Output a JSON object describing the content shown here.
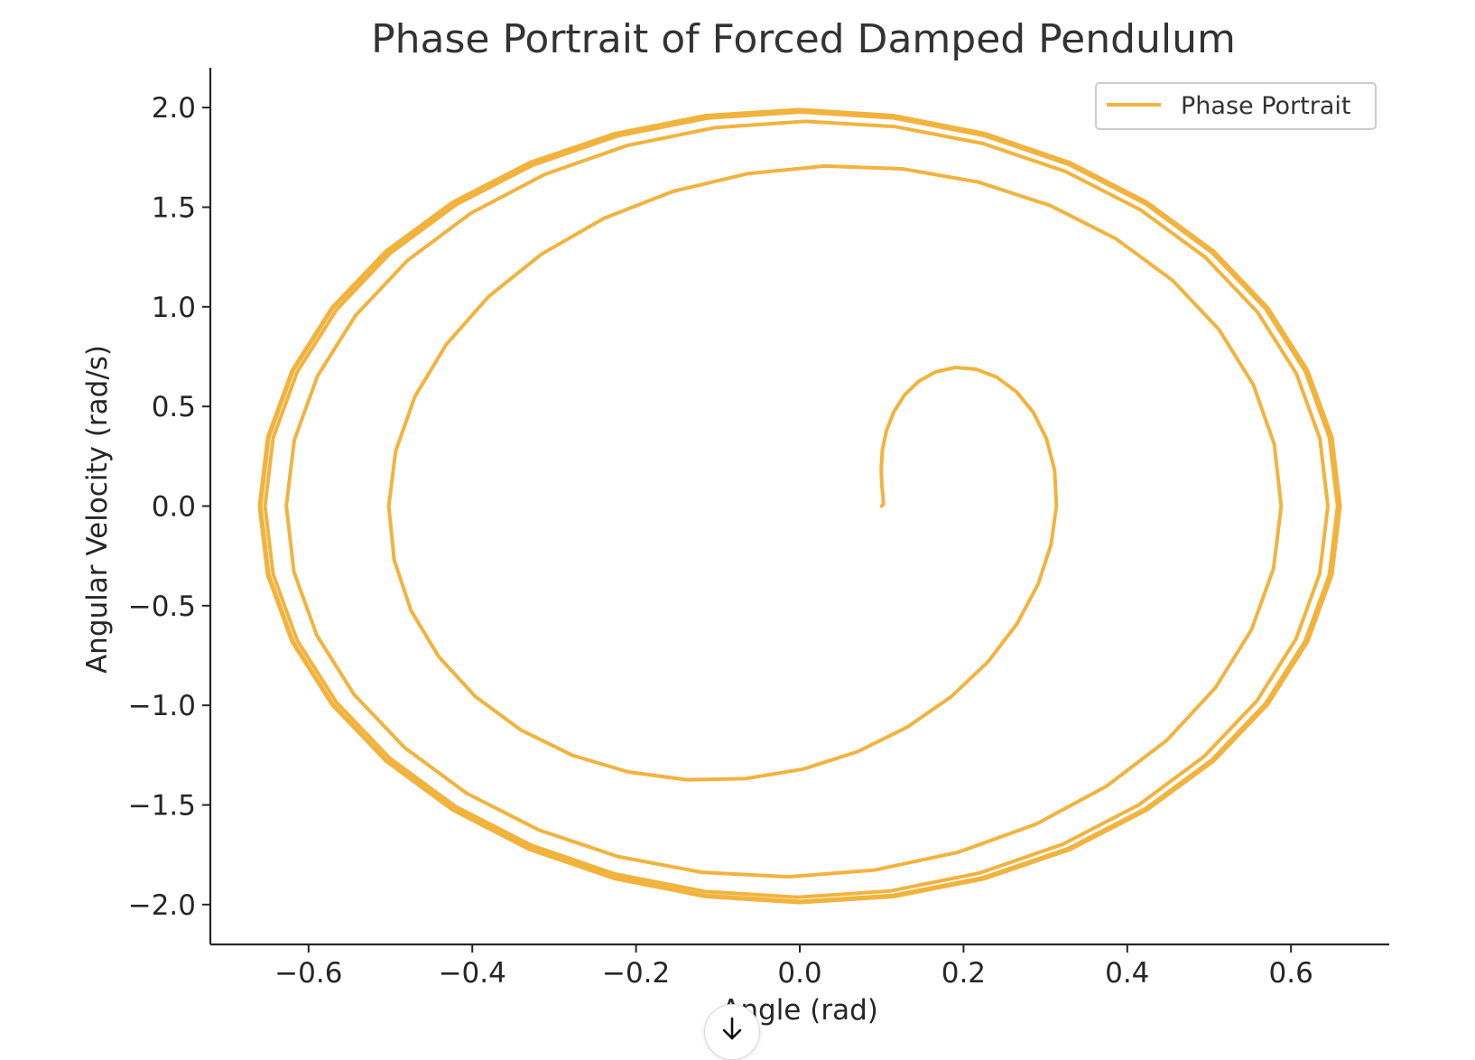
{
  "chart_data": {
    "type": "line",
    "title": "Phase Portrait of Forced Damped Pendulum",
    "xlabel": "Angle (rad)",
    "ylabel": "Angular Velocity (rad/s)",
    "xlim": [
      -0.72,
      0.72
    ],
    "ylim": [
      -2.2,
      2.2
    ],
    "xticks": [
      -0.6,
      -0.4,
      -0.2,
      0.0,
      0.2,
      0.4,
      0.6
    ],
    "yticks": [
      -2.0,
      -1.5,
      -1.0,
      -0.5,
      0.0,
      0.5,
      1.0,
      1.5,
      2.0
    ],
    "xtick_labels": [
      "−0.6",
      "−0.4",
      "−0.2",
      "0.0",
      "0.2",
      "0.4",
      "0.6"
    ],
    "ytick_labels": [
      "−2.0",
      "−1.5",
      "−1.0",
      "−0.5",
      "0.0",
      "0.5",
      "1.0",
      "1.5",
      "2.0"
    ],
    "grid": false,
    "legend": {
      "position": "top-right",
      "entries": [
        "Phase Portrait"
      ]
    },
    "series": [
      {
        "name": "Phase Portrait",
        "color": "#f2b33d",
        "model": {
          "x0": 0.1,
          "v0": 0.0,
          "steady_x_amplitude": 0.66,
          "steady_v_amplitude": 1.99,
          "cycles": 7
        }
      }
    ]
  },
  "ui": {
    "scroll_icon": "arrow-down-icon"
  }
}
